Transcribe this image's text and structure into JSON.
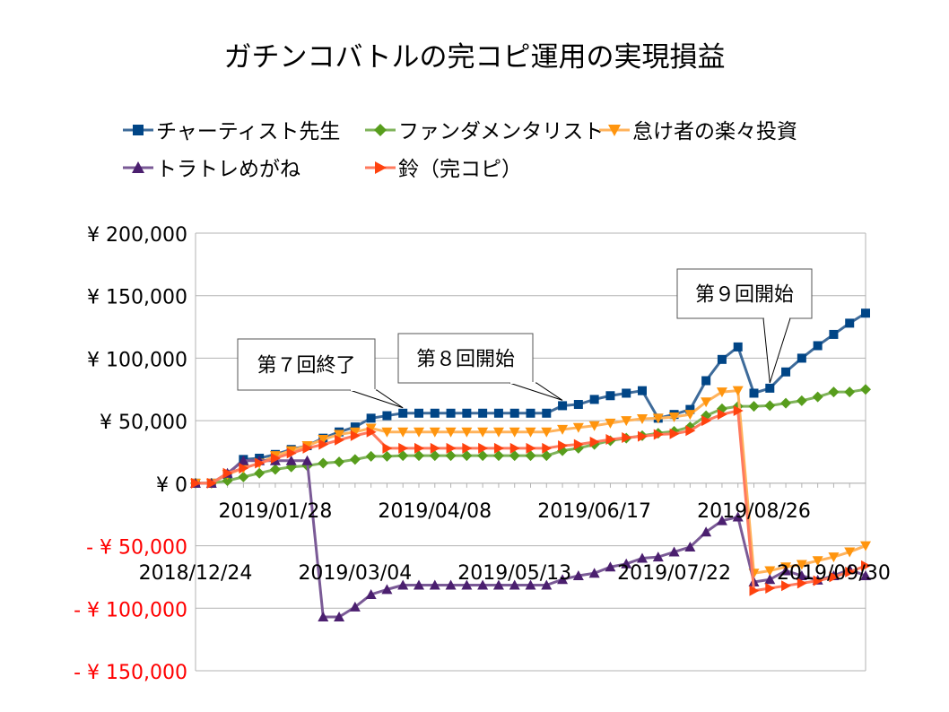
{
  "chart_data": {
    "type": "line",
    "title": "ガチンコバトルの完コピ運用の実現損益",
    "xlabel": "",
    "ylabel": "",
    "ylim": [
      -150000,
      200000
    ],
    "ytick_step": 50000,
    "ytick_labels": [
      "- ¥ 150,000",
      "- ¥ 100,000",
      "- ¥ 50,000",
      "¥ 0",
      "¥ 50,000",
      "¥ 100,000",
      "¥ 150,000",
      "¥ 200,000"
    ],
    "ytick_values": [
      -150000,
      -100000,
      -50000,
      0,
      50000,
      100000,
      150000,
      200000
    ],
    "negative_label_color": "#ff0000",
    "grid": true,
    "legend_position": "top",
    "x_tick_labels": [
      {
        "label": "2018/12/24",
        "index": 0,
        "row": 2
      },
      {
        "label": "2019/01/28",
        "index": 5,
        "row": 1
      },
      {
        "label": "2019/03/04",
        "index": 10,
        "row": 2
      },
      {
        "label": "2019/04/08",
        "index": 15,
        "row": 1
      },
      {
        "label": "2019/05/13",
        "index": 20,
        "row": 2
      },
      {
        "label": "2019/06/17",
        "index": 25,
        "row": 1
      },
      {
        "label": "2019/07/22",
        "index": 30,
        "row": 2
      },
      {
        "label": "2019/08/26",
        "index": 35,
        "row": 1
      },
      {
        "label": "2019/09/30",
        "index": 40,
        "row": 2
      }
    ],
    "point_count": 43,
    "series": [
      {
        "name": "チャーティスト先生",
        "color": "#004586",
        "line_color": "#3e6b9a",
        "marker": "square",
        "values": [
          0,
          0,
          7000,
          19000,
          20000,
          23000,
          27000,
          30000,
          36000,
          41000,
          45000,
          52000,
          54000,
          56000,
          56000,
          56000,
          56000,
          56000,
          56000,
          56000,
          56000,
          56000,
          56000,
          62000,
          63000,
          67000,
          70000,
          72000,
          74000,
          52000,
          55000,
          59000,
          82000,
          99000,
          109000,
          72000,
          76000,
          89000,
          100000,
          110000,
          119000,
          128000,
          136000
        ]
      },
      {
        "name": "ファンダメンタリスト",
        "color": "#579d1c",
        "line_color": "#7fb35a",
        "marker": "diamond",
        "values": [
          0,
          0,
          2000,
          5000,
          8000,
          11000,
          13000,
          14000,
          16000,
          17000,
          19000,
          21500,
          21500,
          22000,
          22000,
          22000,
          22000,
          22000,
          22000,
          22000,
          22000,
          22000,
          22000,
          26000,
          28000,
          31000,
          34000,
          36000,
          38000,
          40000,
          41500,
          45000,
          54000,
          59500,
          61500,
          61500,
          62000,
          64000,
          66000,
          69000,
          73000,
          73000,
          75000
        ]
      },
      {
        "name": "怠け者の楽々投資",
        "color": "#ff950e",
        "line_color": "#ffb35c",
        "marker": "triangle-down",
        "values": [
          0,
          0,
          7000,
          12000,
          16000,
          22000,
          26000,
          30000,
          35000,
          39000,
          41000,
          44000,
          41000,
          41000,
          41000,
          41000,
          41000,
          41000,
          41000,
          41000,
          41000,
          41000,
          41000,
          43000,
          44500,
          46000,
          48000,
          50000,
          51500,
          52000,
          53000,
          55000,
          65000,
          73000,
          74000,
          -72000,
          -70000,
          -67000,
          -65000,
          -62000,
          -59000,
          -55000,
          -50000
        ]
      },
      {
        "name": "トラトレめがね",
        "color": "#4b1f6f",
        "line_color": "#7a5a96",
        "marker": "triangle-up",
        "values": [
          0,
          0,
          8000,
          18000,
          18000,
          18000,
          18000,
          18000,
          -107000,
          -107000,
          -99000,
          -89000,
          -85000,
          -81500,
          -81500,
          -81500,
          -81500,
          -81500,
          -81500,
          -81500,
          -81500,
          -81500,
          -81500,
          -77000,
          -74000,
          -72000,
          -67000,
          -64500,
          -60000,
          -59000,
          -55000,
          -51000,
          -39000,
          -30000,
          -27000,
          -79000,
          -77000,
          -70000,
          -74000,
          -77500,
          -74000,
          -69000,
          -74000
        ]
      },
      {
        "name": "鈴（完コピ）",
        "color": "#ff420e",
        "line_color": "#ff7a5e",
        "marker": "triangle-right",
        "values": [
          0,
          0,
          8000,
          12000,
          16000,
          20000,
          24000,
          28000,
          31000,
          34500,
          38000,
          41000,
          28000,
          28000,
          28000,
          28000,
          28000,
          28000,
          28000,
          28000,
          28000,
          28000,
          28000,
          30000,
          31000,
          33000,
          35000,
          36500,
          37500,
          39000,
          39500,
          42000,
          50000,
          55000,
          58000,
          -86000,
          -84000,
          -82000,
          -80000,
          -78000,
          -75000,
          -71000,
          -66000
        ]
      }
    ],
    "annotations": [
      {
        "text": "第７回終了",
        "index": 13
      },
      {
        "text": "第８回開始",
        "index": 23
      },
      {
        "text": "第９回開始",
        "index": 36
      }
    ]
  }
}
